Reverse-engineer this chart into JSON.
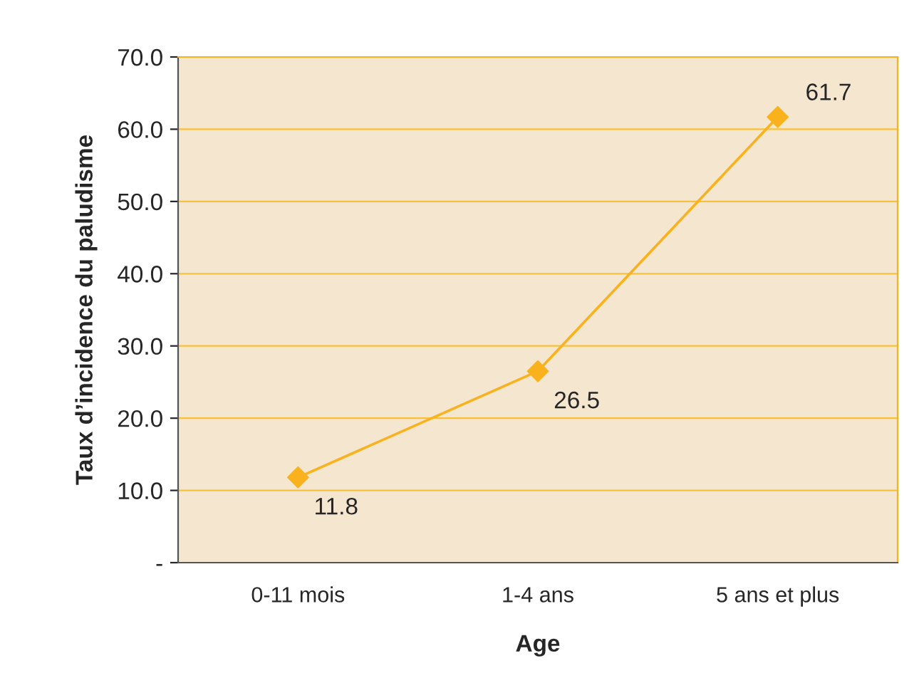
{
  "chart_data": {
    "type": "line",
    "xlabel": "Age",
    "ylabel": "Taux d’incidence du paludisme",
    "categories": [
      "0-11 mois",
      "1-4 ans",
      "5 ans et plus"
    ],
    "series": [
      {
        "color": "#f9b21d",
        "values": [
          11.8,
          26.5,
          61.7
        ]
      }
    ],
    "ylim": [
      0,
      70
    ],
    "yticks": [
      {
        "value": 0,
        "label": "-"
      },
      {
        "value": 10,
        "label": "10.0"
      },
      {
        "value": 20,
        "label": "20.0"
      },
      {
        "value": 30,
        "label": "30.0"
      },
      {
        "value": 40,
        "label": "40.0"
      },
      {
        "value": 50,
        "label": "50.0"
      },
      {
        "value": 60,
        "label": "60.0"
      },
      {
        "value": 70,
        "label": "70.0"
      }
    ],
    "grid": "y",
    "marker": "diamond",
    "line_style": "solid",
    "data_labels": true
  }
}
